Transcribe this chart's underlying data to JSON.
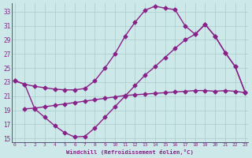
{
  "xlabel": "Windchill (Refroidissement éolien,°C)",
  "bg_color": "#cce8e8",
  "line_color": "#882288",
  "grid_color": "#aacccc",
  "xlim": [
    -0.3,
    23.3
  ],
  "ylim": [
    14.5,
    34.2
  ],
  "ytick_values": [
    15,
    17,
    19,
    21,
    23,
    25,
    27,
    29,
    31,
    33
  ],
  "xtick_values": [
    0,
    1,
    2,
    3,
    4,
    5,
    6,
    7,
    8,
    9,
    10,
    11,
    12,
    13,
    14,
    15,
    16,
    17,
    18,
    19,
    20,
    21,
    22,
    23
  ],
  "curve_top_x": [
    0,
    1,
    2,
    3,
    4,
    5,
    6,
    7,
    8,
    9,
    10,
    11,
    12,
    13,
    14,
    15,
    16,
    17,
    18,
    19,
    20,
    21,
    22,
    23
  ],
  "curve_top_y": [
    23.2,
    22.7,
    22.4,
    22.2,
    22.0,
    21.9,
    21.9,
    22.1,
    23.2,
    25.0,
    27.0,
    29.5,
    31.5,
    33.2,
    33.8,
    33.5,
    33.3,
    31.0,
    29.8,
    31.2,
    29.5,
    27.2,
    25.2,
    21.5
  ],
  "curve_loop_x": [
    0,
    1,
    2,
    3,
    4,
    5,
    6,
    7,
    8,
    9,
    10,
    11,
    12,
    13,
    14,
    15,
    16,
    17,
    18,
    19,
    20,
    21,
    22,
    23
  ],
  "curve_loop_y": [
    23.2,
    22.7,
    19.2,
    18.0,
    16.8,
    15.8,
    15.2,
    15.3,
    16.5,
    18.0,
    19.5,
    21.0,
    22.5,
    24.0,
    25.2,
    26.5,
    27.8,
    29.0,
    29.8,
    31.2,
    29.5,
    27.2,
    25.2,
    21.5
  ],
  "curve_diag_x": [
    1,
    2,
    3,
    4,
    5,
    6,
    7,
    8,
    9,
    10,
    11,
    12,
    13,
    14,
    15,
    16,
    17,
    18,
    19,
    20,
    21,
    22,
    23
  ],
  "curve_diag_y": [
    19.2,
    19.3,
    19.5,
    19.7,
    19.9,
    20.1,
    20.3,
    20.5,
    20.7,
    20.9,
    21.1,
    21.2,
    21.3,
    21.4,
    21.5,
    21.6,
    21.7,
    21.8,
    21.8,
    21.7,
    21.8,
    21.7,
    21.5
  ]
}
